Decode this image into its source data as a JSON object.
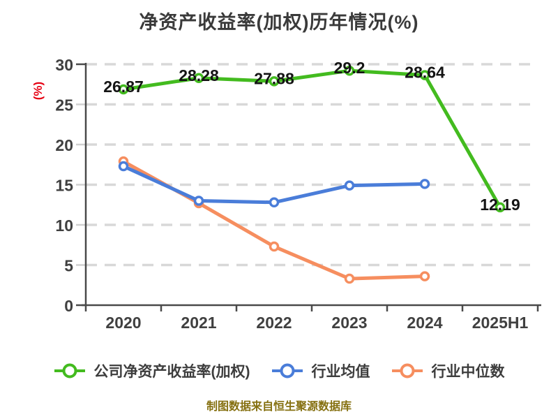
{
  "title": "净资产收益率(加权)历年情况(%)",
  "y_axis_label": "(%)",
  "source_note": "制图数据来自恒生聚源数据库",
  "colors": {
    "company_series": "#43BB1F",
    "industry_mean_series": "#4A7DD9",
    "industry_median_series": "#F68E5F",
    "grid": "#D8D8D8",
    "axis": "#4A4A4A",
    "tick_minor": "#D0D0D0",
    "axis_text": "#404040",
    "title_text": "#3A3A3A",
    "point_label_text": "#141414",
    "legend_text": "#3D3D3D",
    "y_unit_label": "#E60012",
    "source_note_text": "#857010",
    "background": "#FFFFFF",
    "marker_fill": "#FFFFFF"
  },
  "chart_data": {
    "type": "line",
    "title": "净资产收益率(加权)历年情况(%)",
    "categories": [
      "2020",
      "2021",
      "2022",
      "2023",
      "2024",
      "2025H1"
    ],
    "series": [
      {
        "name": "公司净资产收益率(加权)",
        "color": "#43BB1F",
        "values": [
          26.87,
          28.28,
          27.88,
          29.2,
          28.64,
          12.19
        ],
        "point_labels": [
          "26.87",
          "28.28",
          "27.88",
          "29.2",
          "28.64",
          "12.19"
        ]
      },
      {
        "name": "行业均值",
        "color": "#4A7DD9",
        "values": [
          17.3,
          13.0,
          12.8,
          14.9,
          15.1,
          null
        ],
        "point_labels": null
      },
      {
        "name": "行业中位数",
        "color": "#F68E5F",
        "values": [
          17.9,
          12.7,
          7.3,
          3.3,
          3.6,
          null
        ],
        "point_labels": null
      }
    ],
    "xlabel": "",
    "ylabel": "(%)",
    "ylim": [
      0,
      30
    ],
    "yticks": [
      0,
      5,
      10,
      15,
      20,
      25,
      30
    ],
    "grid": "horizontal-dashed",
    "legend_position": "bottom",
    "marker_style": "circle-white-fill"
  },
  "legend": {
    "items": [
      {
        "label": "公司净资产收益率(加权)",
        "color": "#43BB1F"
      },
      {
        "label": "行业均值",
        "color": "#4A7DD9"
      },
      {
        "label": "行业中位数",
        "color": "#F68E5F"
      }
    ]
  }
}
